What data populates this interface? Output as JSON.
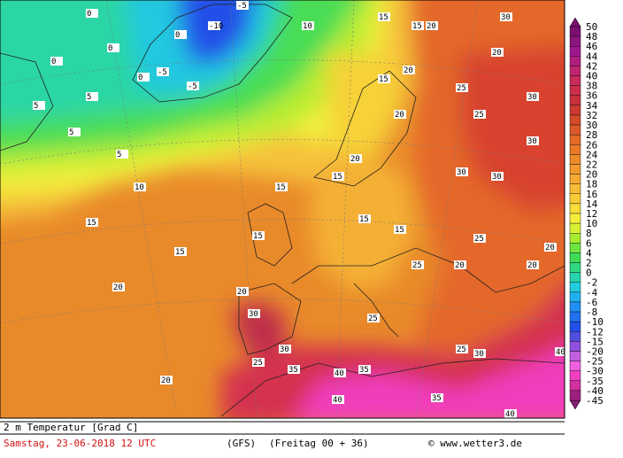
{
  "map": {
    "labels": [
      -10,
      -5,
      -5,
      -5,
      0,
      0,
      0,
      0,
      5,
      5,
      5,
      5,
      0,
      10,
      10,
      15,
      15,
      15,
      15,
      20,
      20,
      20,
      30,
      30,
      25,
      35,
      40,
      35,
      40,
      35,
      40,
      40,
      25,
      20,
      25,
      30,
      30,
      20,
      25,
      25,
      15,
      20,
      15,
      20,
      20,
      15,
      15,
      15,
      25,
      25,
      30,
      20,
      20,
      30,
      30,
      30,
      20,
      15
    ]
  },
  "legend": {
    "labels": [
      50,
      48,
      46,
      44,
      42,
      40,
      38,
      36,
      34,
      32,
      30,
      28,
      26,
      24,
      22,
      20,
      18,
      16,
      14,
      12,
      10,
      8,
      6,
      4,
      2,
      0,
      -2,
      -4,
      -6,
      -8,
      -10,
      -12,
      -15,
      -20,
      -25,
      -30,
      -35,
      -40,
      -45
    ]
  },
  "footer": {
    "title": "2 m Temperatur [Grad C]",
    "date": "Samstag, 23-06-2018  12 UTC",
    "model": "(GFS)",
    "run": "(Freitag 00 + 36)",
    "credit": "© www.wetter3.de"
  }
}
